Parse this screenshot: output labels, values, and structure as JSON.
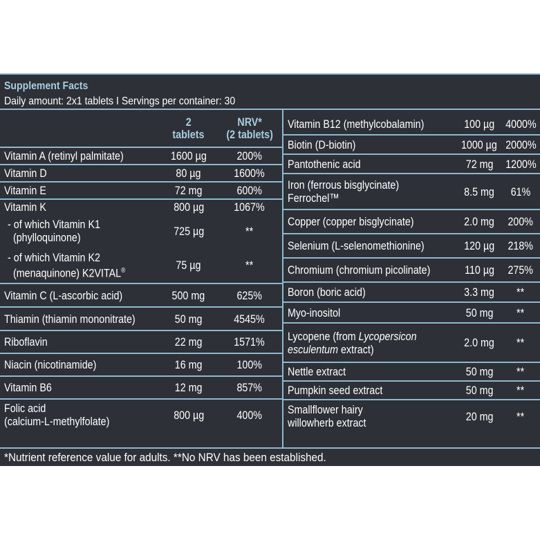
{
  "title": "Supplement Facts",
  "subtitle": "Daily amount: 2x1 tablets I Servings per container: 30",
  "columns": {
    "amount_line1": "2",
    "amount_line2": "tablets",
    "nrv_line1": "NRV*",
    "nrv_line2": "(2 tablets)"
  },
  "left_rows": [
    {
      "name": "Vitamin A (retinyl palmitate)",
      "amount": "1600 µg",
      "nrv": "200%"
    },
    {
      "name": "Vitamin D",
      "amount": "80 µg",
      "nrv": "1600%"
    },
    {
      "name": "Vitamin E",
      "amount": "72 mg",
      "nrv": "600%"
    },
    {
      "name": "Vitamin K",
      "amount": "800 µg",
      "nrv": "1067%"
    },
    {
      "name_line1": "- of which Vitamin K1",
      "name_line2": "(phylloquinone)",
      "amount": "725 µg",
      "nrv": "**"
    },
    {
      "name_line1": "- of which Vitamin K2",
      "name_line2": "(menaquinone) K2VITAL",
      "reg": "®",
      "amount": "75 µg",
      "nrv": "**"
    },
    {
      "name": "Vitamin C (L-ascorbic acid)",
      "amount": "500 mg",
      "nrv": "625%"
    },
    {
      "name": "Thiamin (thiamin mononitrate)",
      "amount": "50 mg",
      "nrv": "4545%"
    },
    {
      "name": "Riboflavin",
      "amount": "22 mg",
      "nrv": "1571%"
    },
    {
      "name": "Niacin (nicotinamide)",
      "amount": "16 mg",
      "nrv": "100%"
    },
    {
      "name": "Vitamin B6",
      "amount": "12 mg",
      "nrv": "857%"
    },
    {
      "name_line1": "Folic acid",
      "name_line2": "(calcium-L-methylfolate)",
      "amount": "800 µg",
      "nrv": "400%"
    }
  ],
  "right_rows": [
    {
      "name": "Vitamin B12 (methylcobalamin)",
      "amount": "100 µg",
      "nrv": "4000%"
    },
    {
      "name": "Biotin (D-biotin)",
      "amount": "1000 µg",
      "nrv": "2000%"
    },
    {
      "name": "Pantothenic acid",
      "amount": "72 mg",
      "nrv": "1200%"
    },
    {
      "name_line1": "Iron (ferrous bisglycinate)",
      "name_line2": "Ferrochel™",
      "amount": "8.5 mg",
      "nrv": "61%"
    },
    {
      "name": "Copper (copper bisglycinate)",
      "amount": "2.0 mg",
      "nrv": "200%"
    },
    {
      "name": "Selenium (L-selenomethionine)",
      "amount": "120 µg",
      "nrv": "218%"
    },
    {
      "name": "Chromium (chromium picolinate)",
      "amount": "110 µg",
      "nrv": "275%"
    },
    {
      "name": "Boron (boric acid)",
      "amount": "3.3 mg",
      "nrv": "**"
    },
    {
      "name": "Myo-inositol",
      "amount": "50 mg",
      "nrv": "**"
    },
    {
      "name_a": "Lycopene (from ",
      "name_b": "Lycopersicon",
      "name_c": "esculentum",
      "name_d": " extract)",
      "amount": "2.0 mg",
      "nrv": "**"
    },
    {
      "name": "Nettle extract",
      "amount": "50 mg",
      "nrv": "**"
    },
    {
      "name": "Pumpkin seed extract",
      "amount": "50 mg",
      "nrv": "**"
    },
    {
      "name_line1": "Smallflower hairy",
      "name_line2": "willowherb extract",
      "amount": "20 mg",
      "nrv": "**"
    }
  ],
  "footnote": "*Nutrient reference value for adults. **No NRV has been established."
}
